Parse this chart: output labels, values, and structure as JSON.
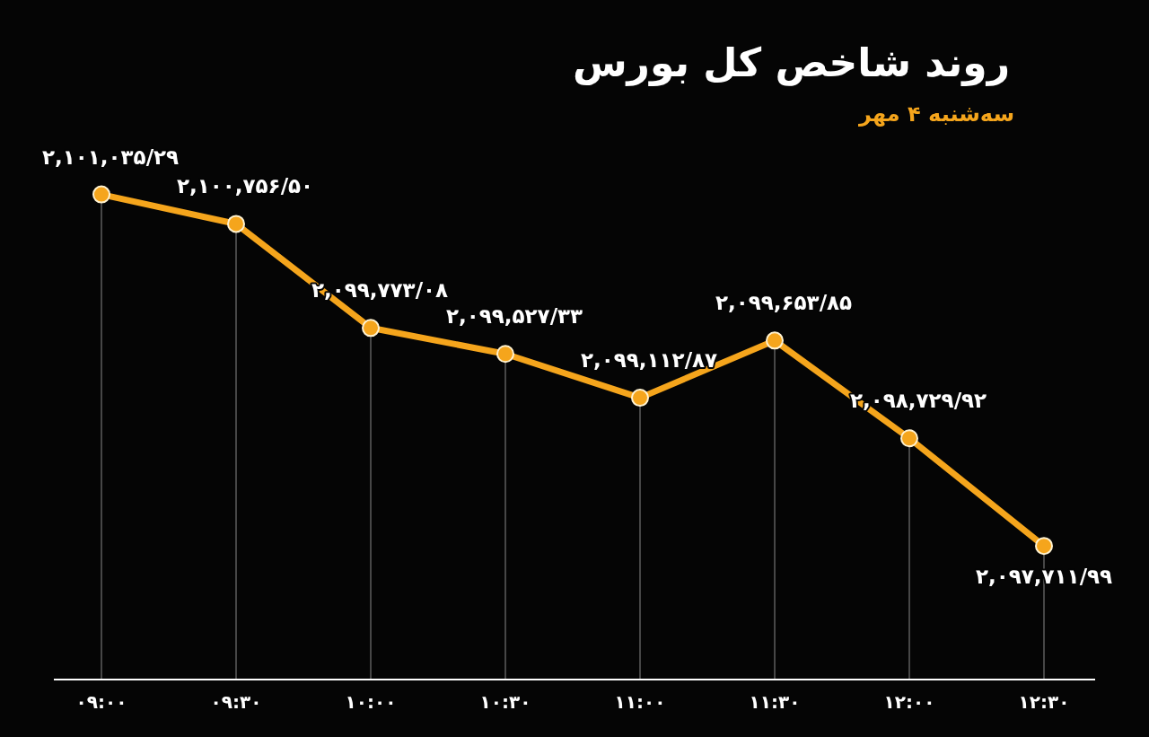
{
  "chart_data": {
    "type": "line",
    "title": "روند شاخص کل بورس",
    "subtitle": "سه‌شنبه ۴ مهر",
    "categories": [
      "۰۹:۰۰",
      "۰۹:۳۰",
      "۱۰:۰۰",
      "۱۰:۳۰",
      "۱۱:۰۰",
      "۱۱:۳۰",
      "۱۲:۰۰",
      "۱۲:۳۰"
    ],
    "values": [
      2101035.29,
      2100756.5,
      2099773.08,
      2099527.33,
      2099112.87,
      2099653.85,
      2098729.92,
      2097711.99
    ],
    "value_labels": [
      "۲,۱۰۱,۰۳۵/۲۹",
      "۲,۱۰۰,۷۵۶/۵۰",
      "۲,۰۹۹,۷۷۳/۰۸",
      "۲,۰۹۹,۵۲۷/۳۳",
      "۲,۰۹۹,۱۱۲/۸۷",
      "۲,۰۹۹,۶۵۳/۸۵",
      "۲,۰۹۸,۷۲۹/۹۲",
      "۲,۰۹۷,۷۱۱/۹۹"
    ],
    "color": "#f5a51c",
    "marker": "circle",
    "line_style": "solid",
    "grid": "x"
  }
}
